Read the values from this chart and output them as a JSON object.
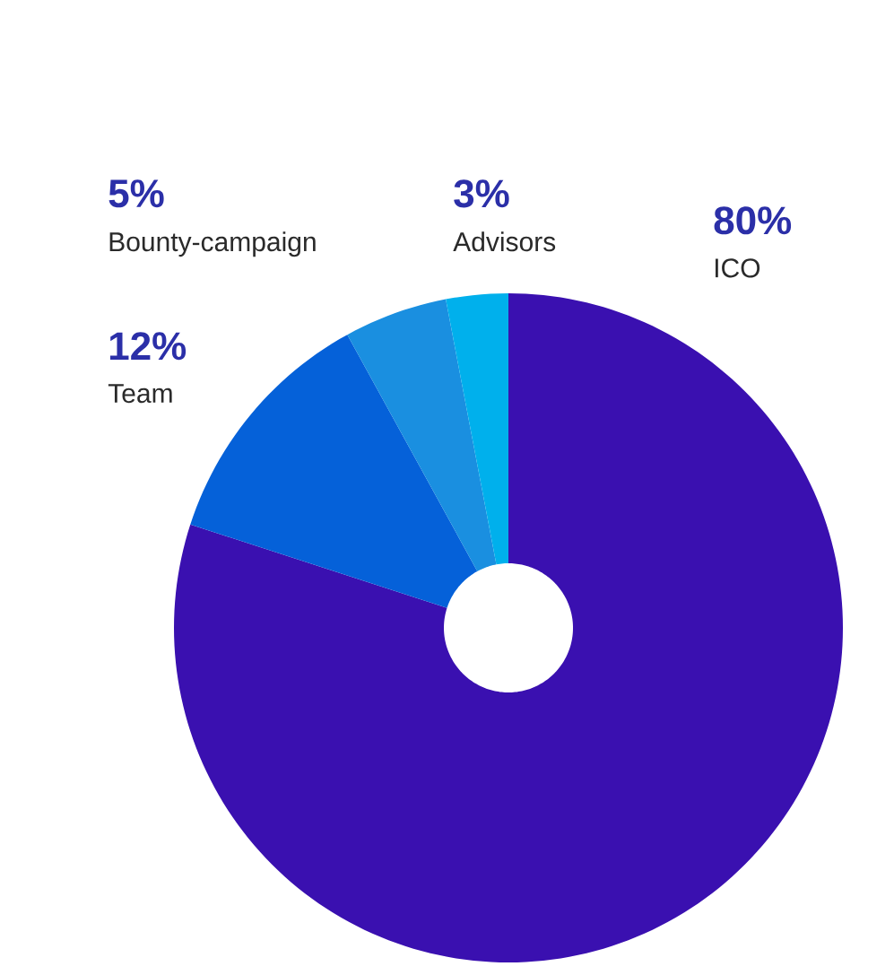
{
  "chart_data": {
    "type": "donut",
    "categories": [
      "ICO",
      "Team",
      "Bounty-campaign",
      "Advisors"
    ],
    "values": [
      80,
      12,
      5,
      3
    ],
    "colors": [
      "#3a10b0",
      "#0561d9",
      "#1a8fe0",
      "#00b0ec"
    ],
    "value_labels": [
      "80%",
      "12%",
      "5%",
      "3%"
    ]
  }
}
